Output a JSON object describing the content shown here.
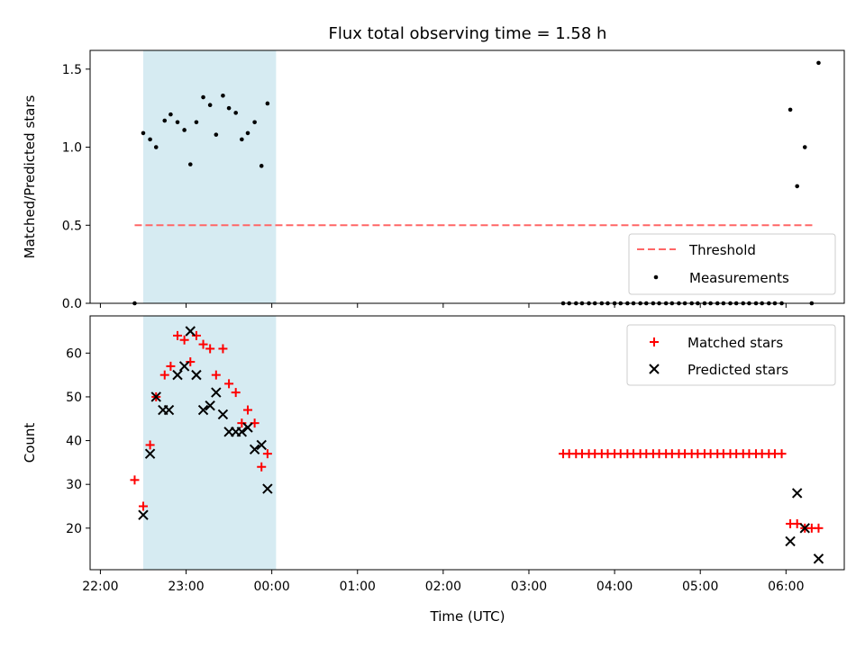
{
  "chart_data": {
    "title": "Flux total observing time = 1.58 h",
    "xlabel": "Time (UTC)",
    "x_ticks": [
      "22:00",
      "23:00",
      "00:00",
      "01:00",
      "02:00",
      "03:00",
      "04:00",
      "05:00",
      "06:00"
    ],
    "x_range_hours": [
      -2.12,
      6.68
    ],
    "shaded_span_hours": [
      -1.5,
      0.05
    ],
    "shade_color": "#add8e6",
    "panels": [
      {
        "type": "scatter",
        "ylabel": "Matched/Predicted stars",
        "ylim": [
          0,
          1.62
        ],
        "y_ticks": [
          "0.0",
          "0.5",
          "1.0",
          "1.5"
        ],
        "y_tick_values": [
          0,
          0.5,
          1.0,
          1.5
        ],
        "threshold": {
          "name": "Threshold",
          "value": 0.5,
          "x_range_hours": [
            -1.6,
            6.33
          ],
          "color": "#ff6666"
        },
        "series": [
          {
            "name": "Measurements",
            "color": "#000000",
            "points": [
              [
                -1.6,
                0.0
              ],
              [
                -1.5,
                1.09
              ],
              [
                -1.42,
                1.05
              ],
              [
                -1.35,
                1.0
              ],
              [
                -1.25,
                1.17
              ],
              [
                -1.18,
                1.21
              ],
              [
                -1.1,
                1.16
              ],
              [
                -1.02,
                1.11
              ],
              [
                -0.95,
                0.89
              ],
              [
                -0.88,
                1.16
              ],
              [
                -0.8,
                1.32
              ],
              [
                -0.72,
                1.27
              ],
              [
                -0.65,
                1.08
              ],
              [
                -0.57,
                1.33
              ],
              [
                -0.5,
                1.25
              ],
              [
                -0.42,
                1.22
              ],
              [
                -0.35,
                1.05
              ],
              [
                -0.28,
                1.09
              ],
              [
                -0.2,
                1.16
              ],
              [
                -0.12,
                0.88
              ],
              [
                -0.05,
                1.28
              ],
              [
                3.4,
                0.0
              ],
              [
                3.47,
                0.0
              ],
              [
                3.55,
                0.0
              ],
              [
                3.62,
                0.0
              ],
              [
                3.7,
                0.0
              ],
              [
                3.77,
                0.0
              ],
              [
                3.85,
                0.0
              ],
              [
                3.92,
                0.0
              ],
              [
                4.0,
                0.0
              ],
              [
                4.07,
                0.0
              ],
              [
                4.15,
                0.0
              ],
              [
                4.22,
                0.0
              ],
              [
                4.3,
                0.0
              ],
              [
                4.37,
                0.0
              ],
              [
                4.45,
                0.0
              ],
              [
                4.52,
                0.0
              ],
              [
                4.6,
                0.0
              ],
              [
                4.67,
                0.0
              ],
              [
                4.75,
                0.0
              ],
              [
                4.82,
                0.0
              ],
              [
                4.9,
                0.0
              ],
              [
                4.97,
                0.0
              ],
              [
                5.05,
                0.0
              ],
              [
                5.12,
                0.0
              ],
              [
                5.2,
                0.0
              ],
              [
                5.27,
                0.0
              ],
              [
                5.35,
                0.0
              ],
              [
                5.42,
                0.0
              ],
              [
                5.5,
                0.0
              ],
              [
                5.57,
                0.0
              ],
              [
                5.65,
                0.0
              ],
              [
                5.72,
                0.0
              ],
              [
                5.8,
                0.0
              ],
              [
                5.87,
                0.0
              ],
              [
                5.95,
                0.0
              ],
              [
                6.05,
                1.24
              ],
              [
                6.13,
                0.75
              ],
              [
                6.22,
                1.0
              ],
              [
                6.3,
                0.0
              ],
              [
                6.38,
                1.54
              ]
            ]
          }
        ],
        "legend": {
          "position": "lower-right",
          "entries": [
            "Threshold",
            "Measurements"
          ]
        }
      },
      {
        "type": "scatter",
        "ylabel": "Count",
        "ylim": [
          10.5,
          68.5
        ],
        "y_ticks": [
          "20",
          "30",
          "40",
          "50",
          "60"
        ],
        "y_tick_values": [
          20,
          30,
          40,
          50,
          60
        ],
        "series": [
          {
            "name": "Matched stars",
            "marker": "plus",
            "color": "#ff0000",
            "points": [
              [
                -1.6,
                31
              ],
              [
                -1.5,
                25
              ],
              [
                -1.42,
                39
              ],
              [
                -1.35,
                50
              ],
              [
                -1.25,
                55
              ],
              [
                -1.18,
                57
              ],
              [
                -1.1,
                64
              ],
              [
                -1.02,
                63
              ],
              [
                -0.95,
                58
              ],
              [
                -0.88,
                64
              ],
              [
                -0.8,
                62
              ],
              [
                -0.72,
                61
              ],
              [
                -0.65,
                55
              ],
              [
                -0.57,
                61
              ],
              [
                -0.5,
                53
              ],
              [
                -0.42,
                51
              ],
              [
                -0.35,
                44
              ],
              [
                -0.28,
                47
              ],
              [
                -0.2,
                44
              ],
              [
                -0.12,
                34
              ],
              [
                -0.05,
                37
              ],
              [
                3.4,
                37
              ],
              [
                3.47,
                37
              ],
              [
                3.55,
                37
              ],
              [
                3.62,
                37
              ],
              [
                3.7,
                37
              ],
              [
                3.77,
                37
              ],
              [
                3.85,
                37
              ],
              [
                3.92,
                37
              ],
              [
                4.0,
                37
              ],
              [
                4.07,
                37
              ],
              [
                4.15,
                37
              ],
              [
                4.22,
                37
              ],
              [
                4.3,
                37
              ],
              [
                4.37,
                37
              ],
              [
                4.45,
                37
              ],
              [
                4.52,
                37
              ],
              [
                4.6,
                37
              ],
              [
                4.67,
                37
              ],
              [
                4.75,
                37
              ],
              [
                4.82,
                37
              ],
              [
                4.9,
                37
              ],
              [
                4.97,
                37
              ],
              [
                5.05,
                37
              ],
              [
                5.12,
                37
              ],
              [
                5.2,
                37
              ],
              [
                5.27,
                37
              ],
              [
                5.35,
                37
              ],
              [
                5.42,
                37
              ],
              [
                5.5,
                37
              ],
              [
                5.57,
                37
              ],
              [
                5.65,
                37
              ],
              [
                5.72,
                37
              ],
              [
                5.8,
                37
              ],
              [
                5.87,
                37
              ],
              [
                5.95,
                37
              ],
              [
                6.05,
                21
              ],
              [
                6.13,
                21
              ],
              [
                6.22,
                20
              ],
              [
                6.3,
                20
              ],
              [
                6.38,
                20
              ]
            ]
          },
          {
            "name": "Predicted stars",
            "marker": "x",
            "color": "#000000",
            "points": [
              [
                -1.5,
                23
              ],
              [
                -1.42,
                37
              ],
              [
                -1.35,
                50
              ],
              [
                -1.27,
                47
              ],
              [
                -1.2,
                47
              ],
              [
                -1.1,
                55
              ],
              [
                -1.02,
                57
              ],
              [
                -0.95,
                65
              ],
              [
                -0.88,
                55
              ],
              [
                -0.8,
                47
              ],
              [
                -0.72,
                48
              ],
              [
                -0.65,
                51
              ],
              [
                -0.57,
                46
              ],
              [
                -0.5,
                42
              ],
              [
                -0.42,
                42
              ],
              [
                -0.35,
                42
              ],
              [
                -0.28,
                43
              ],
              [
                -0.2,
                38
              ],
              [
                -0.12,
                39
              ],
              [
                -0.05,
                29
              ],
              [
                6.05,
                17
              ],
              [
                6.13,
                28
              ],
              [
                6.22,
                20
              ],
              [
                6.38,
                13
              ]
            ]
          }
        ],
        "legend": {
          "position": "upper-right",
          "entries": [
            "Matched stars",
            "Predicted stars"
          ]
        }
      }
    ]
  }
}
